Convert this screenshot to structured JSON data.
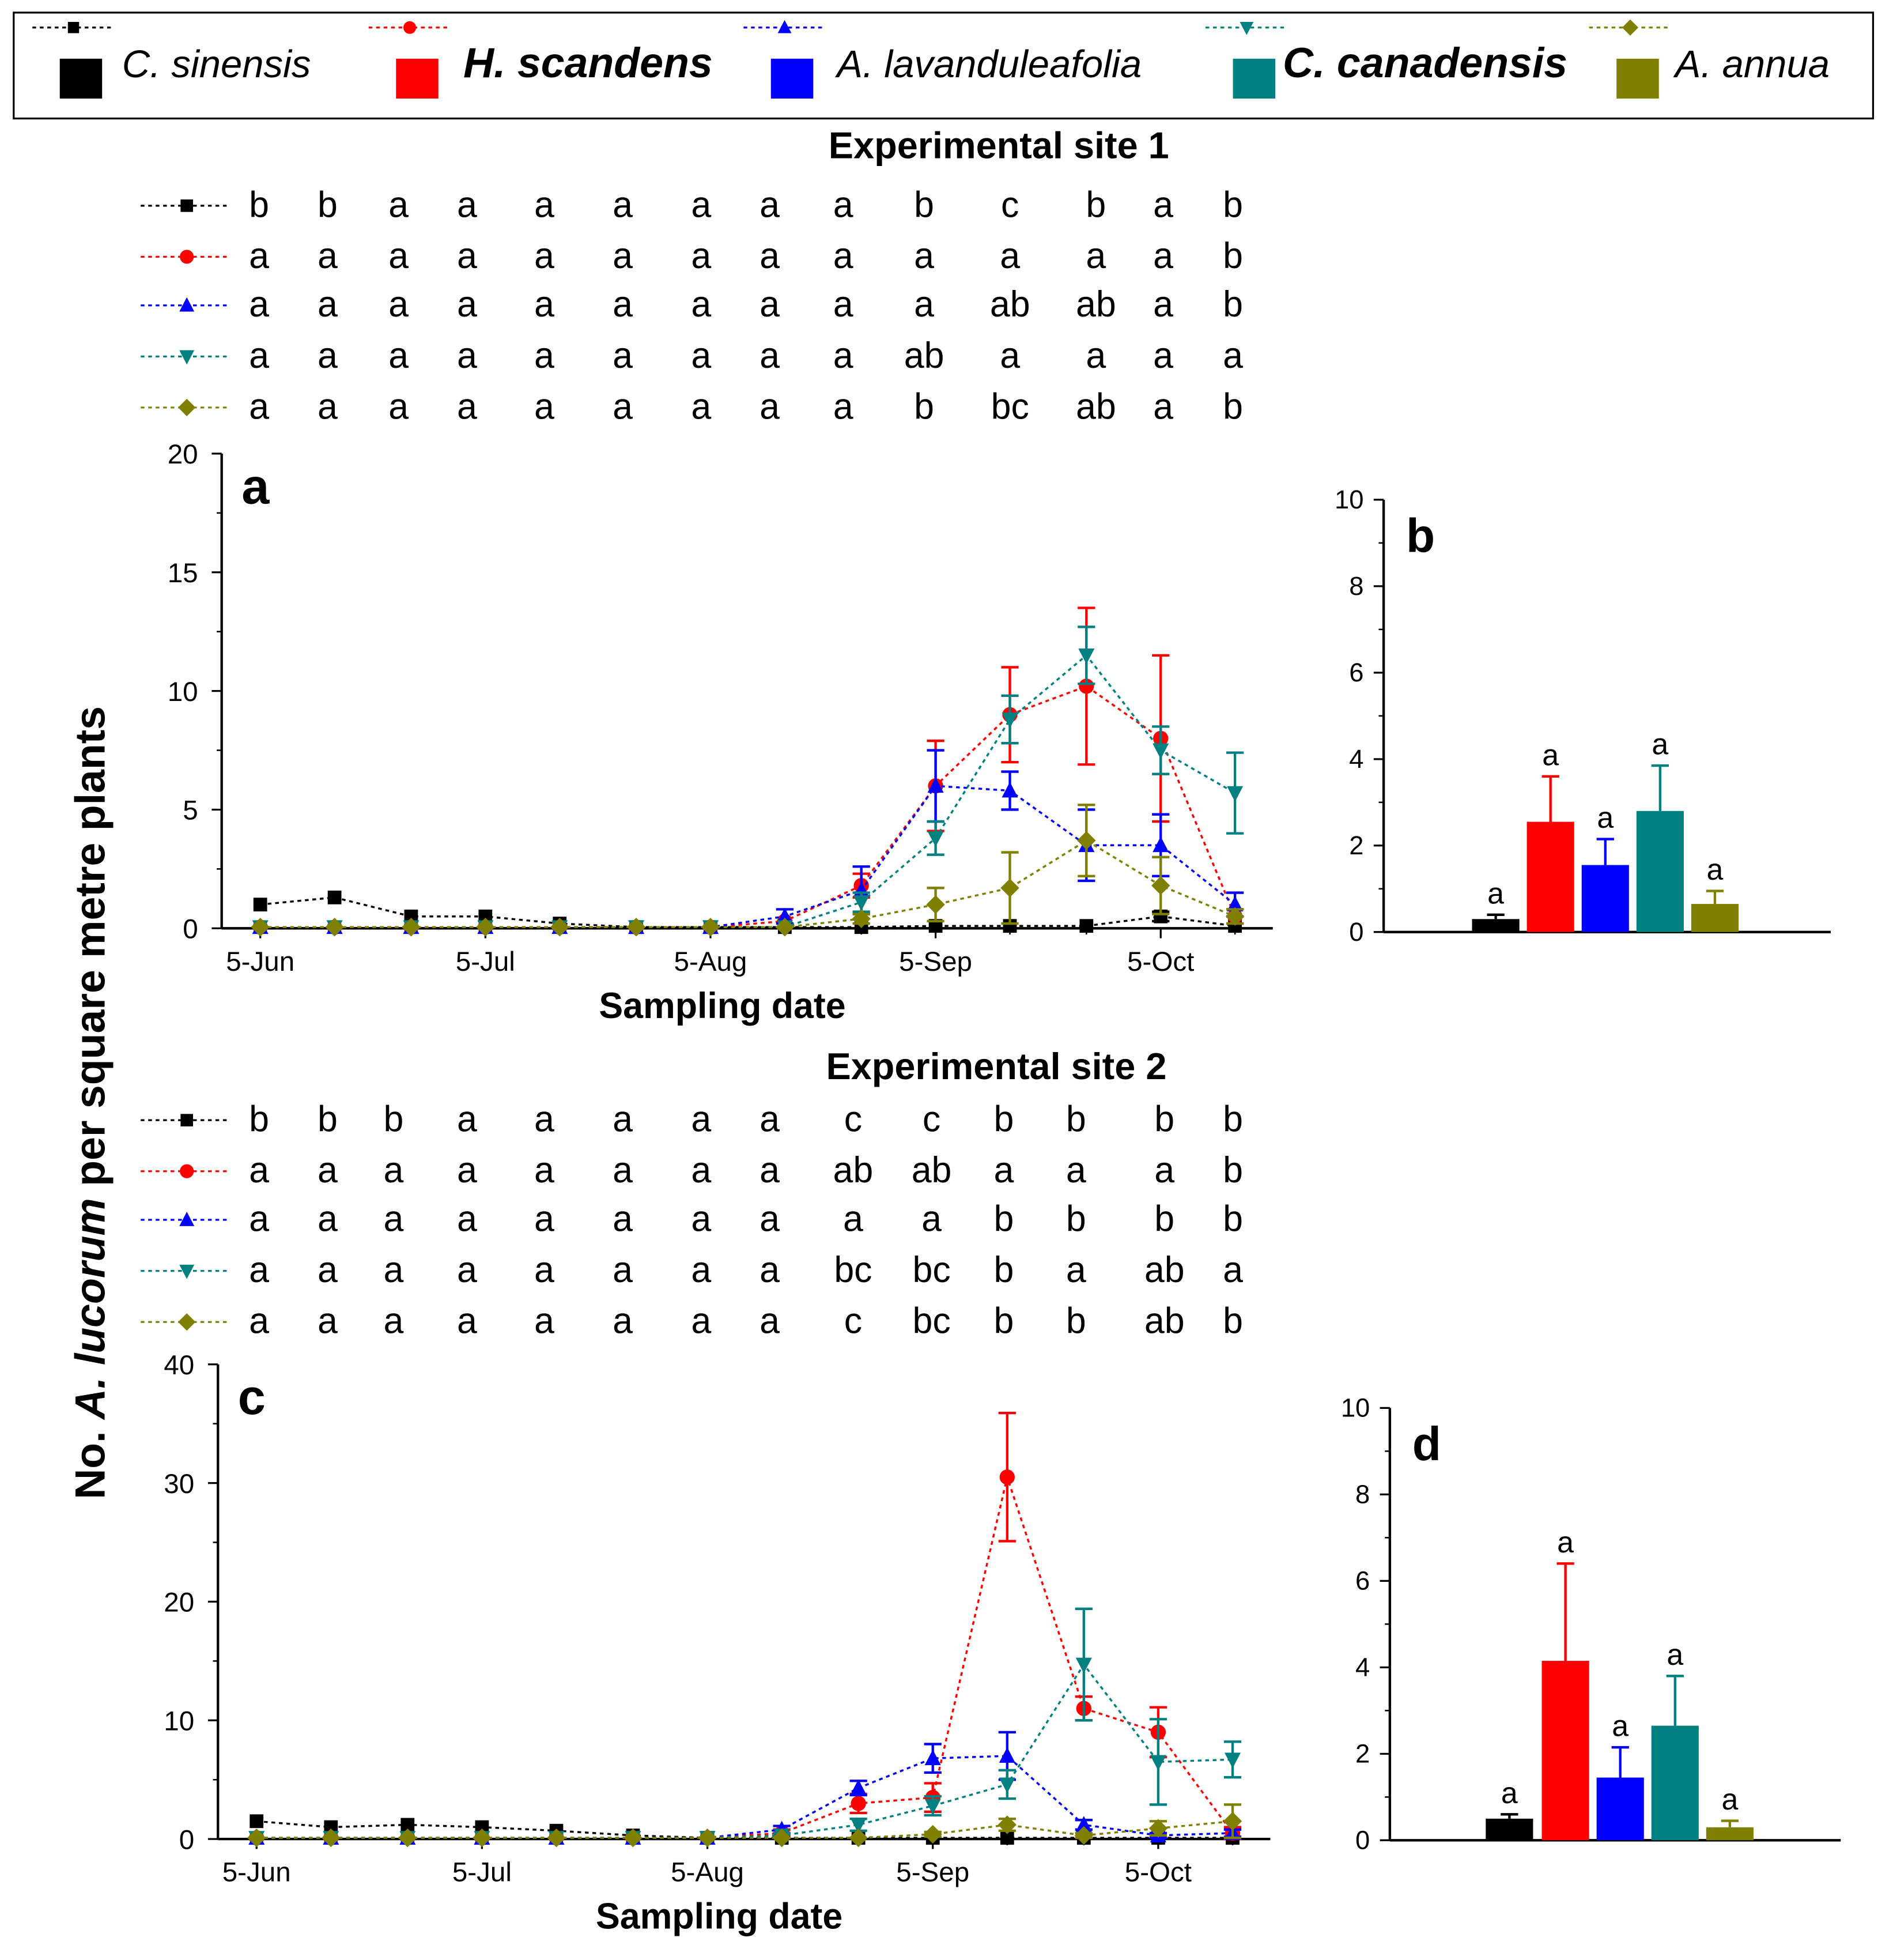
{
  "colors": {
    "C. sinensis": "#000000",
    "H. scandens": "#ff0000",
    "A. lavanduleafolia": "#0000ff",
    "C. canadensis": "#008080",
    "A. annua": "#808000"
  },
  "legend": {
    "items": [
      {
        "name": "C. sinensis",
        "marker": "square"
      },
      {
        "name": "H. scandens",
        "marker": "circle"
      },
      {
        "name": "A. lavanduleafolia",
        "marker": "triangle-up"
      },
      {
        "name": "C. canadensis",
        "marker": "triangle-down"
      },
      {
        "name": "A. annua",
        "marker": "diamond"
      }
    ]
  },
  "y_axis_label": {
    "prefix": "No. ",
    "species": "A. lucorum",
    "suffix": " per square metre plants"
  },
  "sites": [
    {
      "title": "Experimental site 1",
      "letters": [
        [
          "b",
          "b",
          "a",
          "a",
          "a",
          "a",
          "a",
          "a",
          "a",
          "b",
          "c",
          "b",
          "a",
          "b"
        ],
        [
          "a",
          "a",
          "a",
          "a",
          "a",
          "a",
          "a",
          "a",
          "a",
          "a",
          "a",
          "a",
          "a",
          "b"
        ],
        [
          "a",
          "a",
          "a",
          "a",
          "a",
          "a",
          "a",
          "a",
          "a",
          "a",
          "ab",
          "ab",
          "a",
          "b"
        ],
        [
          "a",
          "a",
          "a",
          "a",
          "a",
          "a",
          "a",
          "a",
          "a",
          "ab",
          "a",
          "a",
          "a",
          "a"
        ],
        [
          "a",
          "a",
          "a",
          "a",
          "a",
          "a",
          "a",
          "a",
          "a",
          "b",
          "bc",
          "ab",
          "a",
          "b"
        ]
      ]
    },
    {
      "title": "Experimental site 2",
      "letters": [
        [
          "b",
          "b",
          "b",
          "a",
          "a",
          "a",
          "a",
          "a",
          "c",
          "c",
          "b",
          "b",
          "b",
          "b"
        ],
        [
          "a",
          "a",
          "a",
          "a",
          "a",
          "a",
          "a",
          "a",
          "ab",
          "ab",
          "a",
          "a",
          "a",
          "b"
        ],
        [
          "a",
          "a",
          "a",
          "a",
          "a",
          "a",
          "a",
          "a",
          "a",
          "a",
          "b",
          "b",
          "b",
          "b"
        ],
        [
          "a",
          "a",
          "a",
          "a",
          "a",
          "a",
          "a",
          "a",
          "bc",
          "bc",
          "b",
          "a",
          "ab",
          "a"
        ],
        [
          "a",
          "a",
          "a",
          "a",
          "a",
          "a",
          "a",
          "a",
          "c",
          "bc",
          "b",
          "b",
          "ab",
          "b"
        ]
      ]
    }
  ],
  "chart_data": [
    {
      "panel": "a",
      "type": "line",
      "xlabel": "Sampling date",
      "x_ticks": [
        "5-Jun",
        "5-Jul",
        "5-Aug",
        "5-Sep",
        "5-Oct"
      ],
      "x_tick_positions": [
        0,
        1,
        2,
        3,
        4
      ],
      "ylim": [
        0,
        20
      ],
      "yticks": [
        0,
        5,
        10,
        15,
        20
      ],
      "y_tick_labels": [
        "0",
        "5",
        "10",
        "15",
        "20"
      ],
      "x": [
        0.0,
        0.33,
        0.67,
        1.0,
        1.33,
        1.67,
        2.0,
        2.33,
        2.67,
        3.0,
        3.33,
        3.67,
        4.0,
        4.33
      ],
      "series": [
        {
          "name": "C. sinensis",
          "values": [
            1.0,
            1.3,
            0.5,
            0.5,
            0.2,
            0.05,
            0.05,
            0.05,
            0.05,
            0.1,
            0.1,
            0.1,
            0.5,
            0.1
          ],
          "errors": [
            0,
            0,
            0,
            0,
            0,
            0,
            0,
            0,
            0,
            0,
            0,
            0,
            0.2,
            0
          ]
        },
        {
          "name": "H. scandens",
          "values": [
            0.05,
            0.05,
            0.05,
            0.05,
            0.05,
            0.05,
            0.05,
            0.3,
            1.8,
            6.0,
            9.0,
            10.2,
            8.0,
            0.5
          ],
          "errors": [
            0,
            0,
            0,
            0,
            0,
            0,
            0,
            0,
            0.5,
            1.9,
            2.0,
            3.3,
            3.5,
            0.3
          ]
        },
        {
          "name": "A. lavanduleafolia",
          "values": [
            0.05,
            0.05,
            0.05,
            0.05,
            0.05,
            0.05,
            0.05,
            0.5,
            1.6,
            6.0,
            5.8,
            3.5,
            3.5,
            1.0
          ],
          "errors": [
            0,
            0,
            0,
            0,
            0,
            0,
            0,
            0.3,
            1.0,
            1.5,
            0.8,
            1.5,
            1.3,
            0.5
          ]
        },
        {
          "name": "C. canadensis",
          "values": [
            0.05,
            0.05,
            0.05,
            0.05,
            0.05,
            0.05,
            0.05,
            0.05,
            1.1,
            3.8,
            8.8,
            11.5,
            7.5,
            5.7
          ],
          "errors": [
            0,
            0,
            0,
            0,
            0,
            0,
            0,
            0,
            0.4,
            0.7,
            1.0,
            1.2,
            1.0,
            1.7
          ]
        },
        {
          "name": "A. annua",
          "values": [
            0.05,
            0.05,
            0.05,
            0.05,
            0.05,
            0.05,
            0.05,
            0.05,
            0.4,
            1.0,
            1.7,
            3.7,
            1.8,
            0.5
          ],
          "errors": [
            0,
            0,
            0,
            0,
            0,
            0,
            0,
            0,
            0.2,
            0.7,
            1.5,
            1.5,
            1.2,
            0.3
          ]
        }
      ]
    },
    {
      "panel": "b",
      "type": "bar",
      "categories": [
        "C. sinensis",
        "H. scandens",
        "A. lavanduleafolia",
        "C. canadensis",
        "A. annua"
      ],
      "values": [
        0.3,
        2.55,
        1.55,
        2.8,
        0.65
      ],
      "errors": [
        0.1,
        1.05,
        0.6,
        1.05,
        0.3
      ],
      "labels": [
        "a",
        "a",
        "a",
        "a",
        "a"
      ],
      "ylim": [
        0,
        10
      ],
      "yticks": [
        0,
        2,
        4,
        6,
        8,
        10
      ],
      "y_tick_labels": [
        "0",
        "2",
        "4",
        "6",
        "8",
        "10"
      ]
    },
    {
      "panel": "c",
      "type": "line",
      "xlabel": "Sampling date",
      "x_ticks": [
        "5-Jun",
        "5-Jul",
        "5-Aug",
        "5-Sep",
        "5-Oct"
      ],
      "x_tick_positions": [
        0,
        1,
        2,
        3,
        4
      ],
      "ylim": [
        0,
        40
      ],
      "yticks": [
        0,
        10,
        20,
        30,
        40
      ],
      "y_tick_labels": [
        "0",
        "10",
        "20",
        "30",
        "40"
      ],
      "x": [
        0.0,
        0.33,
        0.67,
        1.0,
        1.33,
        1.67,
        2.0,
        2.33,
        2.67,
        3.0,
        3.33,
        3.67,
        4.0,
        4.33
      ],
      "series": [
        {
          "name": "C. sinensis",
          "values": [
            1.5,
            1.0,
            1.2,
            1.0,
            0.7,
            0.3,
            0.1,
            0.1,
            0.1,
            0.1,
            0.1,
            0.1,
            0.1,
            0.1
          ],
          "errors": [
            0,
            0,
            0,
            0,
            0,
            0,
            0,
            0,
            0,
            0,
            0,
            0,
            0,
            0
          ]
        },
        {
          "name": "H. scandens",
          "values": [
            0.1,
            0.1,
            0.1,
            0.1,
            0.1,
            0.1,
            0.1,
            0.5,
            3.0,
            3.5,
            30.5,
            11.0,
            9.0,
            0.5
          ],
          "errors": [
            0,
            0,
            0,
            0,
            0,
            0,
            0,
            0.3,
            0.8,
            1.2,
            5.4,
            1.0,
            2.1,
            0.5
          ]
        },
        {
          "name": "A. lavanduleafolia",
          "values": [
            0.1,
            0.1,
            0.1,
            0.1,
            0.1,
            0.1,
            0.1,
            0.8,
            4.3,
            6.8,
            7.0,
            1.2,
            0.3,
            0.5
          ],
          "errors": [
            0,
            0,
            0,
            0,
            0,
            0,
            0,
            0.3,
            0.6,
            1.2,
            2.0,
            0.4,
            0.2,
            0.3
          ]
        },
        {
          "name": "C. canadensis",
          "values": [
            0.1,
            0.1,
            0.1,
            0.1,
            0.1,
            0.1,
            0.1,
            0.3,
            1.2,
            2.8,
            4.6,
            14.7,
            6.5,
            6.7
          ],
          "errors": [
            0,
            0,
            0,
            0,
            0,
            0,
            0,
            0.2,
            0.5,
            0.8,
            1.2,
            4.7,
            3.6,
            1.5
          ]
        },
        {
          "name": "A. annua",
          "values": [
            0.1,
            0.1,
            0.1,
            0.1,
            0.1,
            0.1,
            0.1,
            0.1,
            0.1,
            0.4,
            1.2,
            0.3,
            0.9,
            1.5
          ],
          "errors": [
            0,
            0,
            0,
            0,
            0,
            0,
            0,
            0,
            0,
            0.2,
            0.5,
            0.2,
            0.6,
            1.4
          ]
        }
      ]
    },
    {
      "panel": "d",
      "type": "bar",
      "categories": [
        "C. sinensis",
        "H. scandens",
        "A. lavanduleafolia",
        "C. canadensis",
        "A. annua"
      ],
      "values": [
        0.5,
        4.15,
        1.45,
        2.65,
        0.3
      ],
      "errors": [
        0.1,
        2.25,
        0.7,
        1.15,
        0.15
      ],
      "labels": [
        "a",
        "a",
        "a",
        "a",
        "a"
      ],
      "ylim": [
        0,
        10
      ],
      "yticks": [
        0,
        2,
        4,
        6,
        8,
        10
      ],
      "y_tick_labels": [
        "0",
        "2",
        "4",
        "6",
        "8",
        "10"
      ]
    }
  ]
}
